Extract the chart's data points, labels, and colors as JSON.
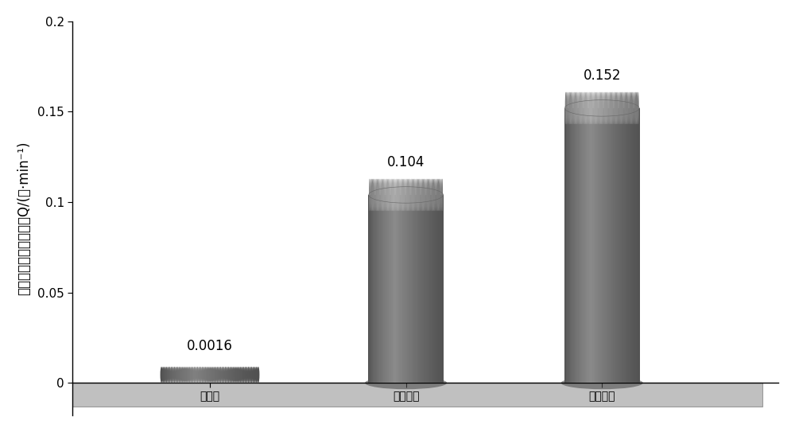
{
  "categories": [
    "未增透",
    "一级增透",
    "二级增透"
  ],
  "values": [
    0.0016,
    0.104,
    0.152
  ],
  "value_labels": [
    "0.0016",
    "0.104",
    "0.152"
  ],
  "ylabel": "单孔平均瓦斯抽采纯量Q/(㎥·min⁻¹)",
  "ylim": [
    0,
    0.2
  ],
  "yticks": [
    0,
    0.05,
    0.1,
    0.15,
    0.2
  ],
  "cyl_dark": "#535353",
  "cyl_mid": "#6a6a6a",
  "cyl_light": "#8a8a8a",
  "cyl_top_dark": "#7a7a7a",
  "cyl_top_light": "#aaaaaa",
  "floor_color": "#c0c0c0",
  "floor_edge": "#999999",
  "background_color": "#ffffff",
  "bar_width": 0.38,
  "positions": [
    1.0,
    2.0,
    3.0
  ],
  "xlim": [
    0.3,
    3.9
  ],
  "label_fontsize": 12,
  "tick_fontsize": 11,
  "ylabel_fontsize": 12
}
